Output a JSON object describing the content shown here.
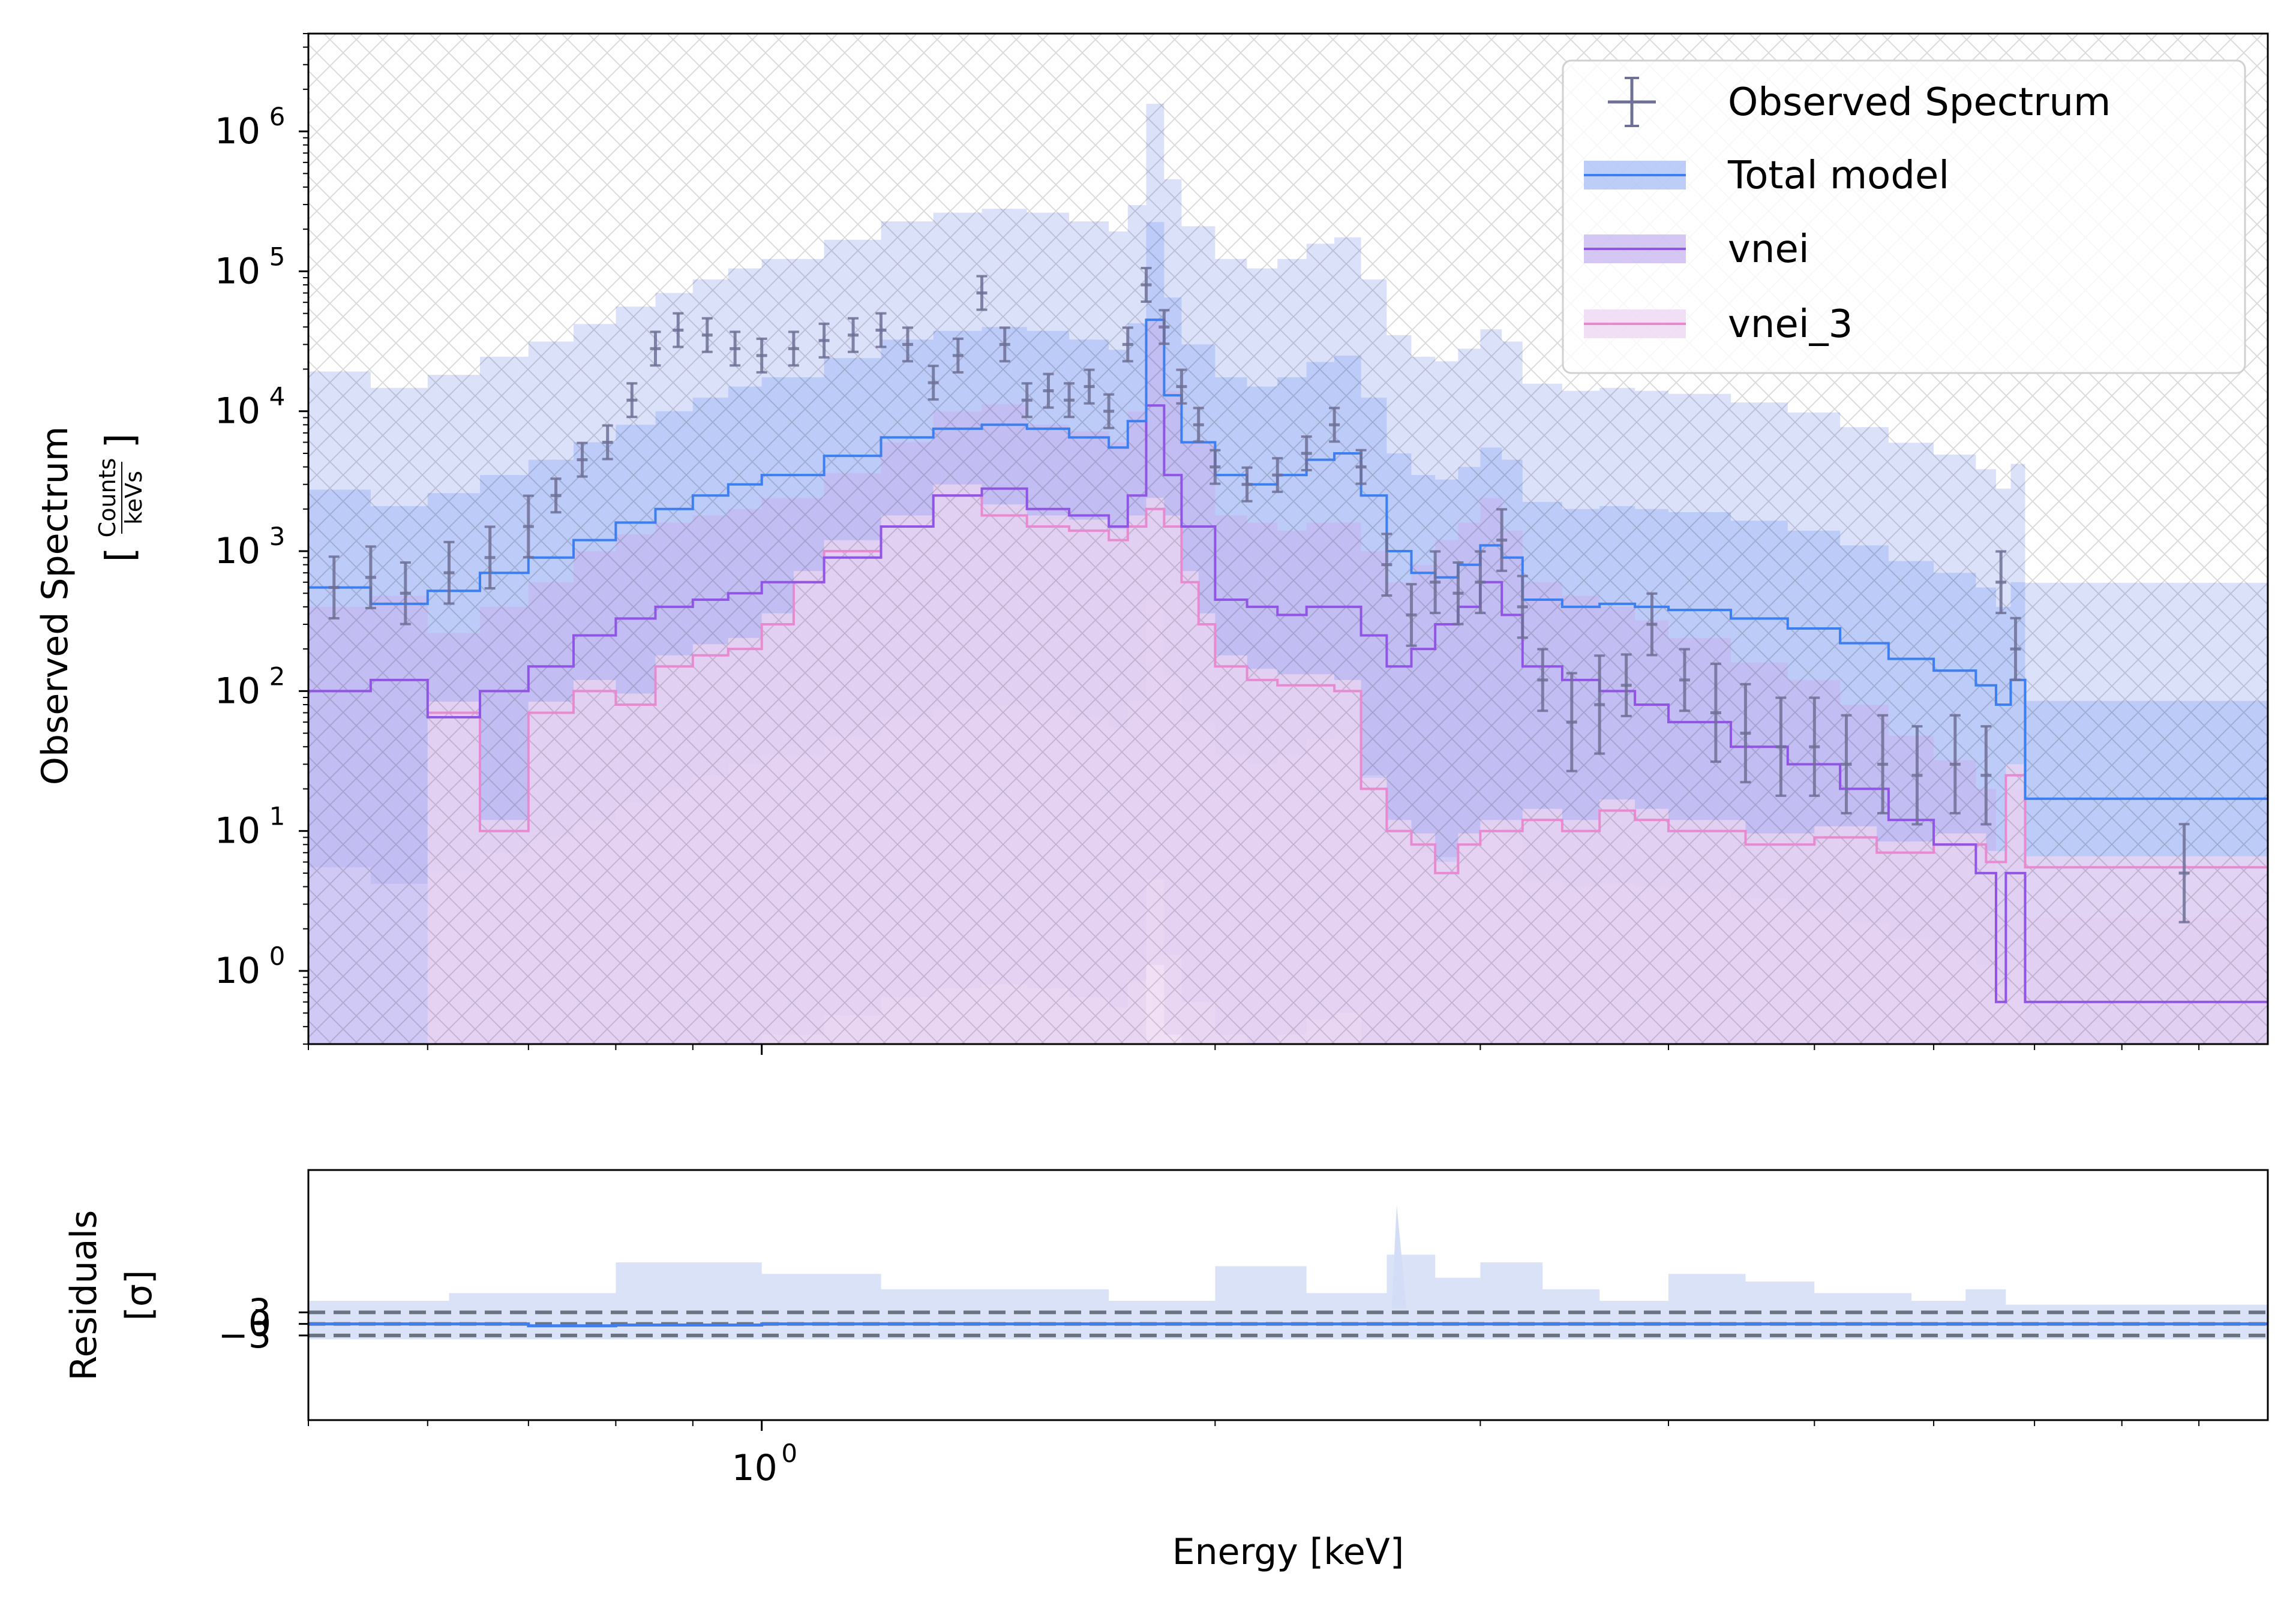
{
  "chart_data": [
    {
      "type": "line",
      "ylabel": "Observed Spectrum",
      "ylabel_units": {
        "numerator": "Counts",
        "denominator": "keVs"
      },
      "xscale": "log",
      "yscale": "log",
      "xlim": [
        0.5,
        10.0
      ],
      "ylim": [
        0.3,
        5000000
      ],
      "yticks": [
        {
          "base": "10",
          "exp": "0"
        },
        {
          "base": "10",
          "exp": "1"
        },
        {
          "base": "10",
          "exp": "2"
        },
        {
          "base": "10",
          "exp": "3"
        },
        {
          "base": "10",
          "exp": "4"
        },
        {
          "base": "10",
          "exp": "5"
        },
        {
          "base": "10",
          "exp": "6"
        }
      ],
      "legend": {
        "placement": "top-right",
        "entries": [
          "Observed Spectrum",
          "Total model",
          "vnei",
          "vnei_3"
        ]
      },
      "colors": {
        "observed": "#6f7095",
        "total": "#3d7ef0",
        "vnei": "#9155e6",
        "vnei_3": "#e88ad0",
        "band_total": "#a6bdf5",
        "band_outer": "#c9d1f7",
        "band_vnei": "#c6b4f0",
        "band_vnei3": "#ecd5f1"
      },
      "series": [
        {
          "name": "Observed Spectrum",
          "x": [
            0.52,
            0.55,
            0.58,
            0.62,
            0.66,
            0.7,
            0.73,
            0.76,
            0.79,
            0.82,
            0.85,
            0.88,
            0.92,
            0.96,
            1.0,
            1.05,
            1.1,
            1.15,
            1.2,
            1.25,
            1.3,
            1.35,
            1.4,
            1.45,
            1.5,
            1.55,
            1.6,
            1.65,
            1.7,
            1.75,
            1.8,
            1.85,
            1.9,
            1.95,
            2.0,
            2.1,
            2.2,
            2.3,
            2.4,
            2.5,
            2.6,
            2.7,
            2.8,
            2.9,
            3.0,
            3.1,
            3.2,
            3.3,
            3.45,
            3.6,
            3.75,
            3.9,
            4.1,
            4.3,
            4.5,
            4.75,
            5.0,
            5.25,
            5.55,
            5.85,
            6.2,
            6.5,
            6.65,
            6.8,
            8.8
          ],
          "y": [
            550,
            650,
            500,
            700,
            900,
            1500,
            2500,
            4500,
            6000,
            12000,
            28000,
            38000,
            35000,
            28000,
            25000,
            28000,
            32000,
            35000,
            38000,
            30000,
            16000,
            25000,
            70000,
            30000,
            12000,
            14000,
            12000,
            15000,
            10000,
            30000,
            80000,
            40000,
            15000,
            8000,
            4000,
            3000,
            3500,
            5000,
            8000,
            4000,
            800,
            350,
            600,
            500,
            600,
            1200,
            400,
            120,
            60,
            80,
            110,
            300,
            120,
            70,
            50,
            40,
            40,
            30,
            30,
            25,
            30,
            25,
            600,
            200,
            5
          ]
        },
        {
          "name": "Total model",
          "x": [
            0.5,
            0.55,
            0.6,
            0.65,
            0.7,
            0.75,
            0.8,
            0.85,
            0.9,
            0.95,
            1.0,
            1.1,
            1.2,
            1.3,
            1.4,
            1.5,
            1.6,
            1.7,
            1.75,
            1.8,
            1.85,
            1.9,
            2.0,
            2.1,
            2.2,
            2.3,
            2.4,
            2.5,
            2.6,
            2.7,
            2.8,
            2.9,
            3.0,
            3.1,
            3.2,
            3.4,
            3.6,
            3.8,
            4.0,
            4.4,
            4.8,
            5.2,
            5.6,
            6.0,
            6.4,
            6.6,
            6.75,
            6.9,
            10.0
          ],
          "y": [
            550,
            420,
            520,
            700,
            900,
            1200,
            1600,
            2000,
            2500,
            3000,
            3500,
            4800,
            6500,
            7500,
            8000,
            7500,
            6500,
            5500,
            8500,
            45000,
            13000,
            6000,
            3500,
            3000,
            3500,
            4500,
            5000,
            2500,
            1000,
            700,
            650,
            800,
            1100,
            900,
            450,
            400,
            420,
            400,
            380,
            330,
            280,
            220,
            170,
            140,
            110,
            80,
            120,
            17,
            17
          ]
        },
        {
          "name": "vnei",
          "x": [
            0.5,
            0.55,
            0.6,
            0.65,
            0.7,
            0.75,
            0.8,
            0.85,
            0.9,
            0.95,
            1.0,
            1.1,
            1.2,
            1.3,
            1.4,
            1.5,
            1.6,
            1.7,
            1.75,
            1.8,
            1.85,
            1.9,
            2.0,
            2.1,
            2.2,
            2.3,
            2.4,
            2.5,
            2.6,
            2.7,
            2.8,
            2.9,
            3.0,
            3.1,
            3.2,
            3.4,
            3.6,
            3.8,
            4.0,
            4.4,
            4.8,
            5.2,
            5.6,
            6.0,
            6.4,
            6.6,
            6.7,
            6.9,
            10.0
          ],
          "y": [
            100,
            120,
            65,
            100,
            150,
            250,
            330,
            400,
            450,
            500,
            600,
            900,
            1500,
            2500,
            2800,
            2000,
            1800,
            1500,
            2500,
            11000,
            3500,
            1500,
            450,
            400,
            350,
            400,
            400,
            250,
            150,
            200,
            300,
            400,
            600,
            350,
            150,
            120,
            100,
            80,
            60,
            40,
            30,
            20,
            12,
            8,
            5,
            0.6,
            5,
            0.6,
            0.6
          ]
        },
        {
          "name": "vnei_3",
          "x": [
            0.6,
            0.65,
            0.7,
            0.75,
            0.8,
            0.85,
            0.9,
            0.95,
            1.0,
            1.05,
            1.1,
            1.2,
            1.3,
            1.4,
            1.5,
            1.6,
            1.7,
            1.75,
            1.8,
            1.85,
            1.9,
            1.95,
            2.0,
            2.1,
            2.2,
            2.3,
            2.4,
            2.5,
            2.6,
            2.7,
            2.8,
            2.9,
            3.0,
            3.2,
            3.4,
            3.6,
            3.8,
            4.0,
            4.5,
            5.0,
            5.5,
            6.0,
            6.5,
            6.7,
            6.9,
            10.0
          ],
          "y": [
            70,
            10,
            70,
            100,
            80,
            150,
            180,
            200,
            300,
            600,
            1000,
            1500,
            2500,
            1800,
            1500,
            1400,
            1200,
            1500,
            2000,
            1500,
            600,
            300,
            150,
            120,
            110,
            110,
            100,
            20,
            10,
            8,
            5,
            8,
            10,
            12,
            10,
            14,
            12,
            10,
            8,
            9,
            7,
            8,
            6,
            25,
            5.5,
            5.5
          ]
        }
      ]
    },
    {
      "type": "line",
      "xlabel": "Energy [keV]",
      "ylabel": "Residuals",
      "ylabel_units": "[σ]",
      "xscale": "log",
      "xlim": [
        0.5,
        10.0
      ],
      "ylim": [
        -25,
        40
      ],
      "xticks": [
        {
          "base": "10",
          "exp": "0"
        }
      ],
      "yticks": [
        "−3",
        "0",
        "3"
      ],
      "reference_lines": [
        -3,
        0,
        3
      ],
      "colors": {
        "residual": "#3d7ef0",
        "band": "#d3ddf6",
        "reference": "#6b7280"
      },
      "series": [
        {
          "name": "residual",
          "x": [
            0.5,
            0.6,
            0.7,
            0.8,
            1.0,
            1.5,
            2.0,
            3.0,
            5.0,
            7.0,
            10.0
          ],
          "y": [
            0,
            0,
            -0.5,
            -0.3,
            0,
            0,
            0,
            0,
            0,
            0,
            0
          ]
        }
      ]
    }
  ]
}
